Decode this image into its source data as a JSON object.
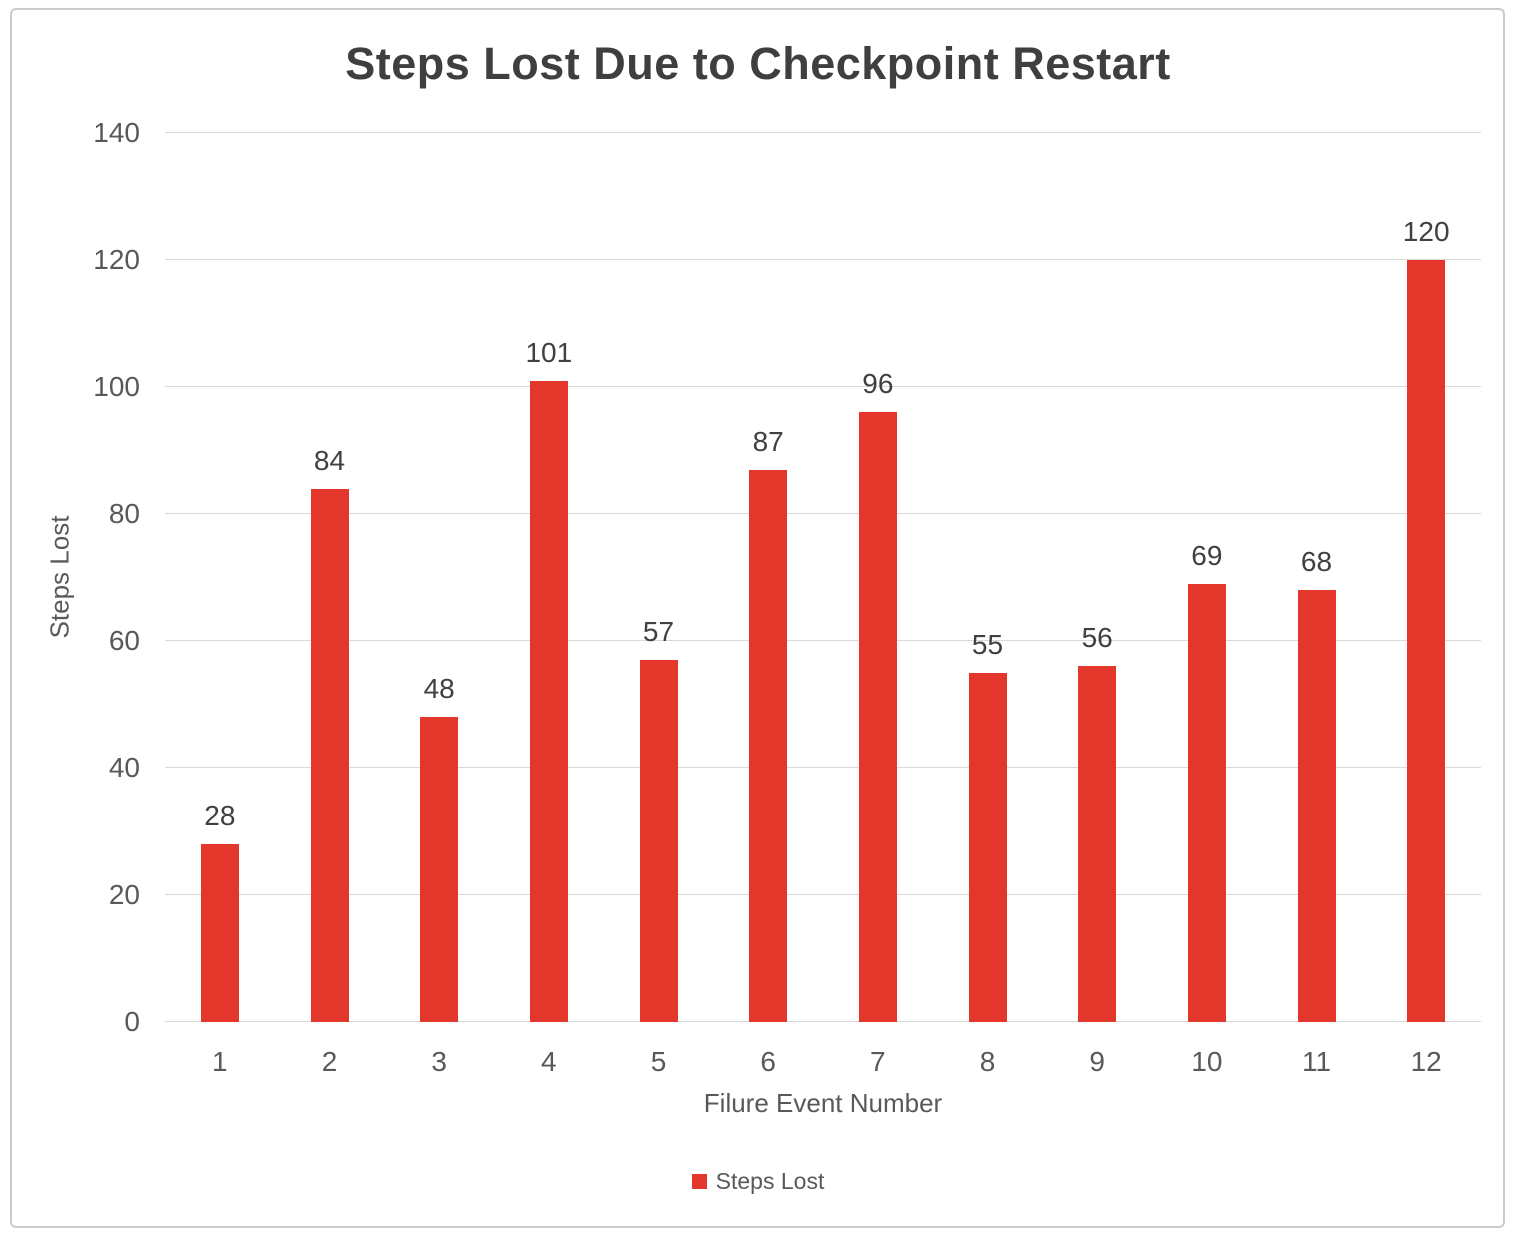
{
  "window": {
    "background_color": "#ffffff",
    "frame_border_color": "#cbcbcb"
  },
  "chart_data": {
    "type": "bar",
    "title": "Steps Lost Due to Checkpoint Restart",
    "xlabel": "Filure Event Number",
    "ylabel": "Steps Lost",
    "categories": [
      "1",
      "2",
      "3",
      "4",
      "5",
      "6",
      "7",
      "8",
      "9",
      "10",
      "11",
      "12"
    ],
    "series": [
      {
        "name": "Steps Lost",
        "values": [
          28,
          84,
          48,
          101,
          57,
          87,
          96,
          55,
          56,
          69,
          68,
          120
        ]
      }
    ],
    "data_labels": [
      28,
      84,
      48,
      101,
      57,
      87,
      96,
      55,
      56,
      69,
      68,
      120
    ],
    "ylim": [
      0,
      140
    ],
    "yticks": [
      0,
      20,
      40,
      60,
      80,
      100,
      120,
      140
    ],
    "grid": true,
    "legend_position": "bottom",
    "colors": {
      "bar": "#e4372b",
      "gridline": "#d9d9d9",
      "tick_label": "#595959",
      "axis_title": "#595959",
      "value_label": "#404040",
      "title": "#3f3f3f"
    }
  },
  "legend": {
    "label": "Steps Lost",
    "swatch_color": "#e4372b"
  }
}
